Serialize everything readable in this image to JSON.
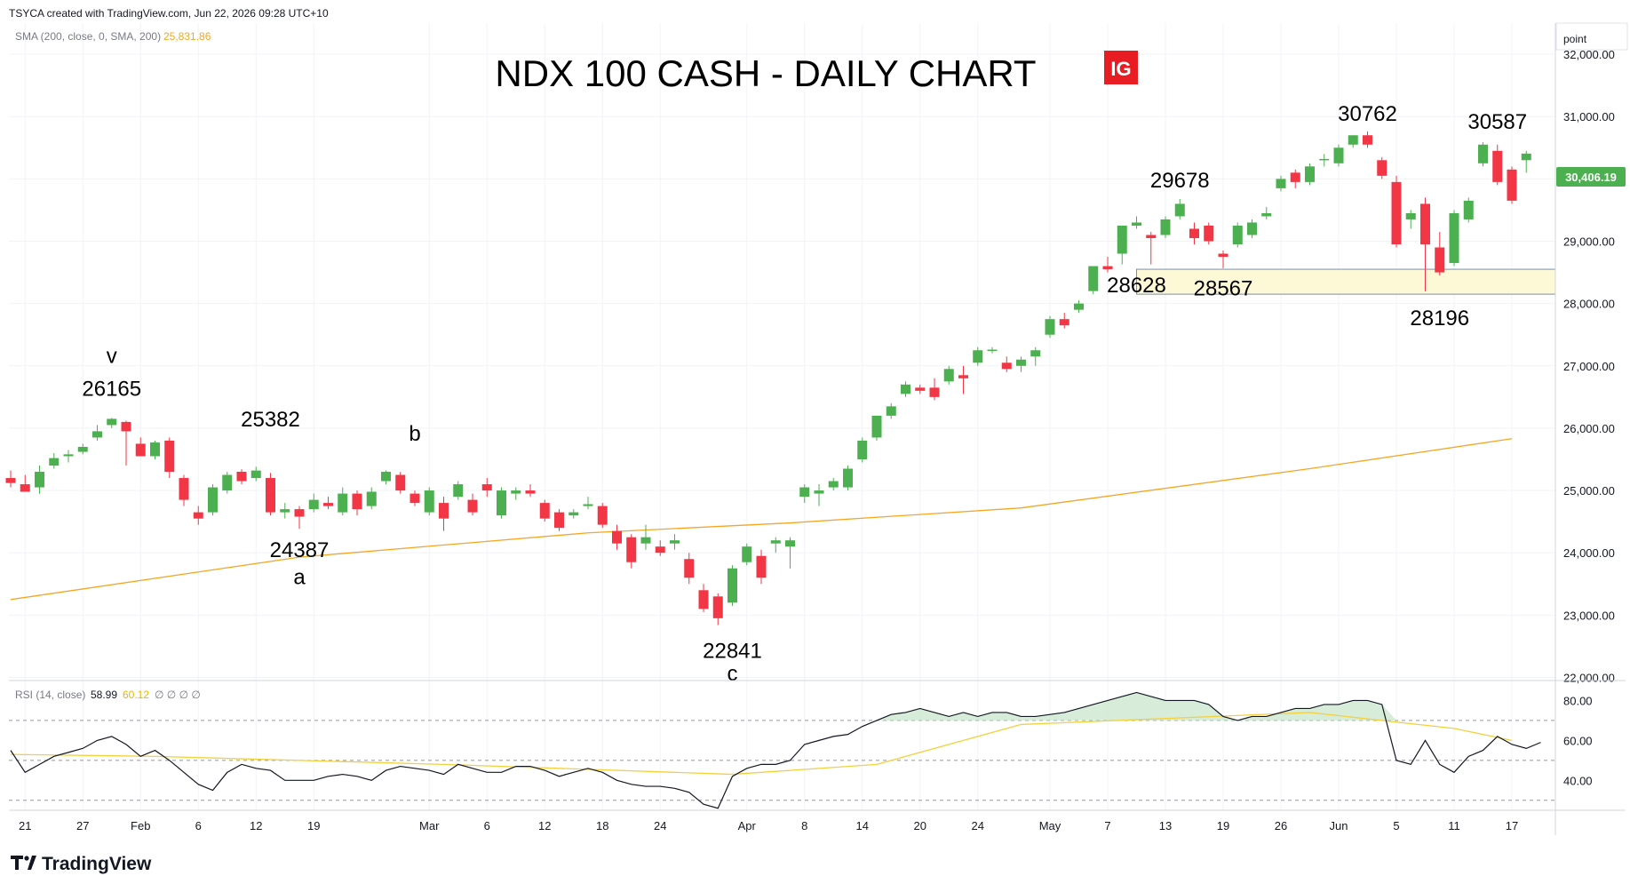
{
  "header": {
    "created_text": "TSYCA created with TradingView.com, Jun 22, 2026 09:28 UTC+10",
    "scale_label": "point"
  },
  "sma_legend": {
    "label": "SMA (200, close, 0, SMA, 200)",
    "value": "25,831.86",
    "color": "#f5a623"
  },
  "rsi_legend": {
    "label": "RSI (14, close)",
    "value": "58.99",
    "ma_value": "60.12",
    "extras": "∅ ∅ ∅ ∅"
  },
  "brand": {
    "badge_text": "IG",
    "badge_color": "#e81c23",
    "footer_logo": "TradingView",
    "logo_icon": "tradingview-logo-icon"
  },
  "price_tag": {
    "text": "30,406.19",
    "color": "#4caf50"
  },
  "colors": {
    "up": "#4caf50",
    "down": "#f23645",
    "sma": "#f5a623",
    "rsi": "#131722",
    "rsi_ma": "#f4d03f",
    "zone_fill": "#fdf8d6",
    "zone_line": "#7a8fb0"
  },
  "chart_data": {
    "type": "candlestick",
    "title": "NDX 100 CASH - DAILY CHART",
    "y_ticks": [
      "32,000.00",
      "31,000.00",
      "30,000.00",
      "29,000.00",
      "28,000.00",
      "27,000.00",
      "26,000.00",
      "25,000.00",
      "24,000.00",
      "23,000.00",
      "22,000.00"
    ],
    "ylim": [
      21950,
      32500
    ],
    "x_ticks": [
      {
        "label": "21",
        "i": 1
      },
      {
        "label": "27",
        "i": 5
      },
      {
        "label": "Feb",
        "i": 9
      },
      {
        "label": "6",
        "i": 13
      },
      {
        "label": "12",
        "i": 17
      },
      {
        "label": "19",
        "i": 21
      },
      {
        "label": "Mar",
        "i": 29
      },
      {
        "label": "6",
        "i": 33
      },
      {
        "label": "12",
        "i": 37
      },
      {
        "label": "18",
        "i": 41
      },
      {
        "label": "24",
        "i": 45
      },
      {
        "label": "Apr",
        "i": 51
      },
      {
        "label": "8",
        "i": 55
      },
      {
        "label": "14",
        "i": 59
      },
      {
        "label": "20",
        "i": 63
      },
      {
        "label": "24",
        "i": 67
      },
      {
        "label": "May",
        "i": 72
      },
      {
        "label": "7",
        "i": 76
      },
      {
        "label": "13",
        "i": 80
      },
      {
        "label": "19",
        "i": 84
      },
      {
        "label": "26",
        "i": 88
      },
      {
        "label": "Jun",
        "i": 92
      },
      {
        "label": "5",
        "i": 96
      },
      {
        "label": "11",
        "i": 100
      },
      {
        "label": "17",
        "i": 104
      }
    ],
    "candles": [
      {
        "o": 25200,
        "h": 25320,
        "l": 25050,
        "c": 25120
      },
      {
        "o": 25100,
        "h": 25250,
        "l": 25000,
        "c": 24980
      },
      {
        "o": 25050,
        "h": 25400,
        "l": 24950,
        "c": 25300
      },
      {
        "o": 25400,
        "h": 25600,
        "l": 25350,
        "c": 25520
      },
      {
        "o": 25550,
        "h": 25650,
        "l": 25450,
        "c": 25580
      },
      {
        "o": 25620,
        "h": 25750,
        "l": 25580,
        "c": 25700
      },
      {
        "o": 25850,
        "h": 26050,
        "l": 25800,
        "c": 25950
      },
      {
        "o": 26050,
        "h": 26165,
        "l": 26000,
        "c": 26150
      },
      {
        "o": 26100,
        "h": 26120,
        "l": 25400,
        "c": 25950
      },
      {
        "o": 25750,
        "h": 25850,
        "l": 25550,
        "c": 25550
      },
      {
        "o": 25550,
        "h": 25800,
        "l": 25500,
        "c": 25770
      },
      {
        "o": 25800,
        "h": 25850,
        "l": 25200,
        "c": 25300
      },
      {
        "o": 25200,
        "h": 25250,
        "l": 24750,
        "c": 24850
      },
      {
        "o": 24650,
        "h": 24750,
        "l": 24450,
        "c": 24550
      },
      {
        "o": 24650,
        "h": 25100,
        "l": 24600,
        "c": 25050
      },
      {
        "o": 25000,
        "h": 25300,
        "l": 24950,
        "c": 25250
      },
      {
        "o": 25300,
        "h": 25340,
        "l": 25100,
        "c": 25150
      },
      {
        "o": 25200,
        "h": 25382,
        "l": 25150,
        "c": 25320
      },
      {
        "o": 25200,
        "h": 25280,
        "l": 24600,
        "c": 24650
      },
      {
        "o": 24650,
        "h": 24800,
        "l": 24550,
        "c": 24700
      },
      {
        "o": 24700,
        "h": 24750,
        "l": 24387,
        "c": 24580
      },
      {
        "o": 24700,
        "h": 24950,
        "l": 24650,
        "c": 24850
      },
      {
        "o": 24800,
        "h": 24900,
        "l": 24700,
        "c": 24750
      },
      {
        "o": 24650,
        "h": 25050,
        "l": 24600,
        "c": 24950
      },
      {
        "o": 24950,
        "h": 25000,
        "l": 24600,
        "c": 24700
      },
      {
        "o": 24750,
        "h": 25050,
        "l": 24700,
        "c": 24980
      },
      {
        "o": 25150,
        "h": 25320,
        "l": 25100,
        "c": 25300
      },
      {
        "o": 25250,
        "h": 25300,
        "l": 24950,
        "c": 25000
      },
      {
        "o": 24950,
        "h": 25000,
        "l": 24750,
        "c": 24800
      },
      {
        "o": 24650,
        "h": 25050,
        "l": 24600,
        "c": 25000
      },
      {
        "o": 24800,
        "h": 24900,
        "l": 24350,
        "c": 24550
      },
      {
        "o": 24900,
        "h": 25150,
        "l": 24850,
        "c": 25100
      },
      {
        "o": 24850,
        "h": 24950,
        "l": 24600,
        "c": 24650
      },
      {
        "o": 25100,
        "h": 25200,
        "l": 24900,
        "c": 25000
      },
      {
        "o": 24600,
        "h": 25050,
        "l": 24550,
        "c": 25000
      },
      {
        "o": 24950,
        "h": 25050,
        "l": 24850,
        "c": 25000
      },
      {
        "o": 25000,
        "h": 25100,
        "l": 24900,
        "c": 24950
      },
      {
        "o": 24800,
        "h": 24850,
        "l": 24500,
        "c": 24550
      },
      {
        "o": 24650,
        "h": 24700,
        "l": 24350,
        "c": 24400
      },
      {
        "o": 24600,
        "h": 24700,
        "l": 24550,
        "c": 24650
      },
      {
        "o": 24750,
        "h": 24900,
        "l": 24700,
        "c": 24780
      },
      {
        "o": 24750,
        "h": 24800,
        "l": 24400,
        "c": 24450
      },
      {
        "o": 24350,
        "h": 24450,
        "l": 24050,
        "c": 24150
      },
      {
        "o": 24250,
        "h": 24300,
        "l": 23750,
        "c": 23850
      },
      {
        "o": 24150,
        "h": 24450,
        "l": 24050,
        "c": 24250
      },
      {
        "o": 24100,
        "h": 24200,
        "l": 23950,
        "c": 24000
      },
      {
        "o": 24150,
        "h": 24300,
        "l": 24050,
        "c": 24200
      },
      {
        "o": 23900,
        "h": 24000,
        "l": 23500,
        "c": 23600
      },
      {
        "o": 23400,
        "h": 23500,
        "l": 23050,
        "c": 23100
      },
      {
        "o": 23300,
        "h": 23350,
        "l": 22841,
        "c": 22950
      },
      {
        "o": 23200,
        "h": 23800,
        "l": 23150,
        "c": 23750
      },
      {
        "o": 23850,
        "h": 24150,
        "l": 23800,
        "c": 24100
      },
      {
        "o": 23950,
        "h": 24050,
        "l": 23500,
        "c": 23600
      },
      {
        "o": 24150,
        "h": 24250,
        "l": 24000,
        "c": 24200
      },
      {
        "o": 24100,
        "h": 24250,
        "l": 23750,
        "c": 24200
      },
      {
        "o": 24900,
        "h": 25100,
        "l": 24800,
        "c": 25050
      },
      {
        "o": 24950,
        "h": 25100,
        "l": 24750,
        "c": 25000
      },
      {
        "o": 25050,
        "h": 25200,
        "l": 25000,
        "c": 25150
      },
      {
        "o": 25050,
        "h": 25400,
        "l": 25000,
        "c": 25350
      },
      {
        "o": 25500,
        "h": 25850,
        "l": 25450,
        "c": 25800
      },
      {
        "o": 25850,
        "h": 26200,
        "l": 25800,
        "c": 26200
      },
      {
        "o": 26200,
        "h": 26400,
        "l": 26150,
        "c": 26350
      },
      {
        "o": 26550,
        "h": 26750,
        "l": 26500,
        "c": 26700
      },
      {
        "o": 26650,
        "h": 26700,
        "l": 26550,
        "c": 26600
      },
      {
        "o": 26650,
        "h": 26800,
        "l": 26450,
        "c": 26500
      },
      {
        "o": 26750,
        "h": 27000,
        "l": 26700,
        "c": 26950
      },
      {
        "o": 26850,
        "h": 27000,
        "l": 26550,
        "c": 26800
      },
      {
        "o": 27050,
        "h": 27300,
        "l": 27000,
        "c": 27250
      },
      {
        "o": 27250,
        "h": 27300,
        "l": 27200,
        "c": 27260
      },
      {
        "o": 27050,
        "h": 27150,
        "l": 26900,
        "c": 26950
      },
      {
        "o": 27000,
        "h": 27150,
        "l": 26900,
        "c": 27100
      },
      {
        "o": 27150,
        "h": 27300,
        "l": 27000,
        "c": 27250
      },
      {
        "o": 27500,
        "h": 27800,
        "l": 27450,
        "c": 27750
      },
      {
        "o": 27750,
        "h": 27850,
        "l": 27600,
        "c": 27650
      },
      {
        "o": 27900,
        "h": 28050,
        "l": 27850,
        "c": 28000
      },
      {
        "o": 28200,
        "h": 28600,
        "l": 28150,
        "c": 28600
      },
      {
        "o": 28600,
        "h": 28750,
        "l": 28500,
        "c": 28550
      },
      {
        "o": 28800,
        "h": 29250,
        "l": 28628,
        "c": 29250
      },
      {
        "o": 29250,
        "h": 29400,
        "l": 29200,
        "c": 29300
      },
      {
        "o": 29100,
        "h": 29150,
        "l": 28628,
        "c": 29050
      },
      {
        "o": 29100,
        "h": 29400,
        "l": 29050,
        "c": 29350
      },
      {
        "o": 29400,
        "h": 29678,
        "l": 29350,
        "c": 29600
      },
      {
        "o": 29200,
        "h": 29300,
        "l": 28950,
        "c": 29050
      },
      {
        "o": 29250,
        "h": 29300,
        "l": 28950,
        "c": 29000
      },
      {
        "o": 28800,
        "h": 28850,
        "l": 28567,
        "c": 28750
      },
      {
        "o": 28950,
        "h": 29300,
        "l": 28900,
        "c": 29250
      },
      {
        "o": 29100,
        "h": 29350,
        "l": 29050,
        "c": 29300
      },
      {
        "o": 29400,
        "h": 29550,
        "l": 29350,
        "c": 29450
      },
      {
        "o": 29850,
        "h": 30050,
        "l": 29800,
        "c": 30000
      },
      {
        "o": 30100,
        "h": 30150,
        "l": 29850,
        "c": 29950
      },
      {
        "o": 29950,
        "h": 30250,
        "l": 29900,
        "c": 30200
      },
      {
        "o": 30300,
        "h": 30400,
        "l": 30200,
        "c": 30320
      },
      {
        "o": 30250,
        "h": 30550,
        "l": 30200,
        "c": 30500
      },
      {
        "o": 30550,
        "h": 30700,
        "l": 30500,
        "c": 30700
      },
      {
        "o": 30700,
        "h": 30762,
        "l": 30500,
        "c": 30550
      },
      {
        "o": 30300,
        "h": 30350,
        "l": 30000,
        "c": 30050
      },
      {
        "o": 29950,
        "h": 30050,
        "l": 28900,
        "c": 28950
      },
      {
        "o": 29350,
        "h": 29500,
        "l": 29200,
        "c": 29450
      },
      {
        "o": 29600,
        "h": 29700,
        "l": 28196,
        "c": 28950
      },
      {
        "o": 28900,
        "h": 29150,
        "l": 28450,
        "c": 28500
      },
      {
        "o": 28650,
        "h": 29500,
        "l": 28600,
        "c": 29450
      },
      {
        "o": 29350,
        "h": 29700,
        "l": 29300,
        "c": 29650
      },
      {
        "o": 30250,
        "h": 30587,
        "l": 30200,
        "c": 30550
      },
      {
        "o": 30450,
        "h": 30550,
        "l": 29900,
        "c": 29950
      },
      {
        "o": 30150,
        "h": 30200,
        "l": 29600,
        "c": 29650
      },
      {
        "o": 30300,
        "h": 30450,
        "l": 30100,
        "c": 30406
      }
    ],
    "sma_200": [
      {
        "i": 0,
        "v": 23250
      },
      {
        "i": 20,
        "v": 23930
      },
      {
        "i": 40,
        "v": 24320
      },
      {
        "i": 54,
        "v": 24480
      },
      {
        "i": 70,
        "v": 24720
      },
      {
        "i": 90,
        "v": 25350
      },
      {
        "i": 104,
        "v": 25831
      }
    ],
    "support_zone": {
      "from_i": 78,
      "to": 28150,
      "top": 28550
    },
    "annotations": [
      {
        "text": "v",
        "i": 7,
        "price": 27050
      },
      {
        "text": "26165",
        "i": 7,
        "price": 26520
      },
      {
        "text": "25382",
        "i": 18,
        "price": 26030
      },
      {
        "text": "b",
        "i": 28,
        "price": 25800
      },
      {
        "text": "24387",
        "i": 20,
        "price": 23930
      },
      {
        "text": "a",
        "i": 20,
        "price": 23500
      },
      {
        "text": "22841",
        "i": 50,
        "price": 22310
      },
      {
        "text": "c",
        "i": 50,
        "price": 21950
      },
      {
        "text": "29678",
        "i": 81,
        "price": 29860
      },
      {
        "text": "28628",
        "i": 78,
        "price": 28180
      },
      {
        "text": "28567",
        "i": 84,
        "price": 28130
      },
      {
        "text": "30762",
        "i": 94,
        "price": 30930
      },
      {
        "text": "30587",
        "i": 103,
        "price": 30800
      },
      {
        "text": "28196",
        "i": 99,
        "price": 27650
      }
    ],
    "rsi": {
      "ticks": [
        "80.00",
        "60.00",
        "40.00"
      ],
      "ylim": [
        25,
        90
      ],
      "levels": [
        70,
        50,
        30
      ],
      "values": [
        55,
        44,
        48,
        52,
        54,
        56,
        60,
        62,
        58,
        52,
        55,
        50,
        44,
        38,
        35,
        44,
        48,
        46,
        45,
        40,
        40,
        40,
        42,
        43,
        42,
        40,
        45,
        47,
        46,
        45,
        43,
        48,
        46,
        44,
        44,
        47,
        47,
        45,
        42,
        44,
        46,
        44,
        40,
        38,
        37,
        37,
        36,
        34,
        28,
        26,
        42,
        46,
        48,
        48,
        50,
        58,
        60,
        62,
        63,
        67,
        70,
        73,
        74,
        76,
        74,
        72,
        74,
        72,
        74,
        74,
        72,
        72,
        73,
        74,
        76,
        78,
        80,
        82,
        84,
        82,
        80,
        80,
        80,
        78,
        72,
        70,
        72,
        72,
        74,
        76,
        76,
        78,
        78,
        80,
        80,
        78,
        50,
        48,
        60,
        48,
        44,
        52,
        55,
        62,
        58,
        56,
        59
      ],
      "ma_values": [
        {
          "i": 0,
          "v": 53
        },
        {
          "i": 10,
          "v": 52
        },
        {
          "i": 30,
          "v": 48
        },
        {
          "i": 50,
          "v": 43
        },
        {
          "i": 60,
          "v": 48
        },
        {
          "i": 70,
          "v": 68
        },
        {
          "i": 90,
          "v": 74
        },
        {
          "i": 100,
          "v": 66
        },
        {
          "i": 104,
          "v": 60
        }
      ]
    }
  }
}
